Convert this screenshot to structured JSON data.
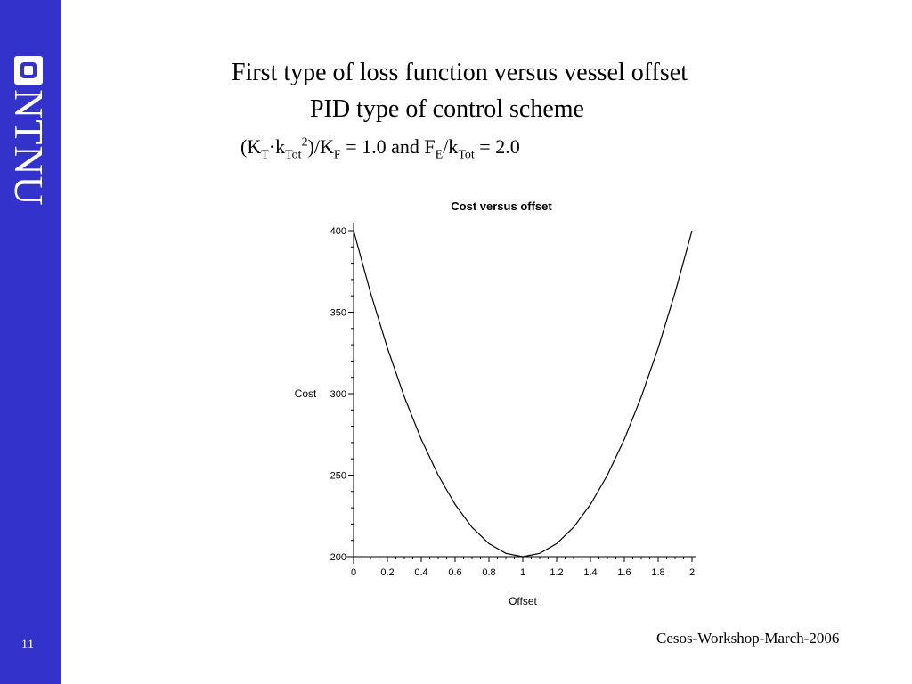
{
  "slide": {
    "title_line1": "First type of loss function versus vessel offset",
    "title_line2": "PID type of control scheme",
    "formula": {
      "p1": "(K",
      "s1": "T",
      "p2": "·k",
      "s2": "Tot",
      "sup1": "2",
      "p3": ")/K",
      "s3": "F",
      "p4": " = 1.0 and  F",
      "s4": "E",
      "p5": "/k",
      "s5": "Tot",
      "p6": " = 2.0"
    },
    "footer": "Cesos-Workshop-March-2006",
    "page_number": "11",
    "logo_text": "NTNU",
    "sidebar_color": "#3333cc"
  },
  "chart_data": {
    "type": "line",
    "title": "Cost versus offset",
    "xlabel": "Offset",
    "ylabel": "Cost",
    "xlim": [
      0,
      2
    ],
    "ylim": [
      200,
      400
    ],
    "x_ticks": [
      "0",
      "0.2",
      "0.4",
      "0.6",
      "0.8",
      "1",
      "1.2",
      "1.4",
      "1.6",
      "1.8",
      "2"
    ],
    "y_ticks": [
      "200",
      "250",
      "300",
      "350",
      "400"
    ],
    "x_tick_values": [
      0,
      0.2,
      0.4,
      0.6,
      0.8,
      1,
      1.2,
      1.4,
      1.6,
      1.8,
      2
    ],
    "y_tick_values": [
      200,
      250,
      300,
      350,
      400
    ],
    "series": [
      {
        "x": [
          0,
          0.1,
          0.2,
          0.3,
          0.4,
          0.5,
          0.6,
          0.7,
          0.8,
          0.9,
          1.0,
          1.1,
          1.2,
          1.3,
          1.4,
          1.5,
          1.6,
          1.7,
          1.8,
          1.9,
          2.0
        ],
        "y": [
          400,
          362,
          328,
          298,
          272,
          250,
          232,
          218,
          208,
          202,
          200,
          202,
          208,
          218,
          232,
          250,
          272,
          298,
          328,
          362,
          400
        ],
        "color": "#000000"
      }
    ],
    "grid": false
  }
}
